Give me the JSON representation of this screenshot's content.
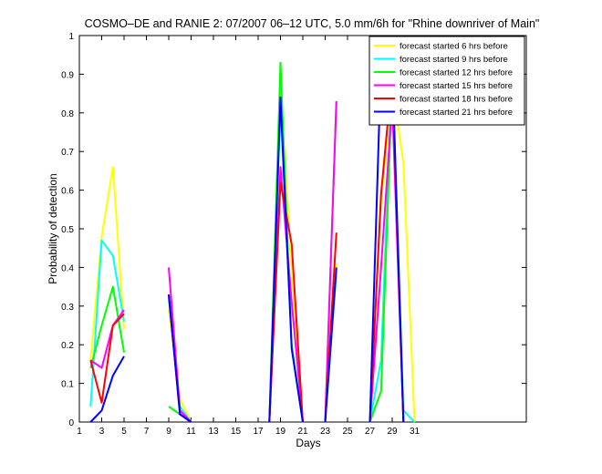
{
  "chart_data": {
    "type": "line",
    "title": "COSMO–DE and RANIE 2: 07/2007 06–12 UTC, 5.0 mm/6h for \"Rhine downriver of Main\"",
    "xlabel": "Days",
    "ylabel": "Probability of detection",
    "xlim": [
      1,
      41
    ],
    "ylim": [
      0,
      1
    ],
    "x_ticks": [
      1,
      3,
      5,
      7,
      9,
      11,
      13,
      15,
      17,
      19,
      21,
      23,
      25,
      27,
      29,
      31
    ],
    "y_ticks": [
      0,
      0.1,
      0.2,
      0.3,
      0.4,
      0.5,
      0.6,
      0.7,
      0.8,
      0.9,
      1
    ],
    "x_tick_labels": [
      "1",
      "3",
      "5",
      "7",
      "9",
      "11",
      "13",
      "15",
      "17",
      "19",
      "21",
      "23",
      "25",
      "27",
      "29",
      "31"
    ],
    "y_tick_labels": [
      "0",
      "0.1",
      "0.2",
      "0.3",
      "0.4",
      "0.5",
      "0.6",
      "0.7",
      "0.8",
      "0.9",
      "1"
    ],
    "legend_position": "top-right",
    "grid": false,
    "series": [
      {
        "name": "forecast started 6 hrs before",
        "color": "#ffff00",
        "segments": [
          [
            [
              2,
              0.16
            ],
            [
              3,
              0.48
            ],
            [
              4,
              0.66
            ],
            [
              5,
              0.24
            ]
          ],
          [
            [
              9,
              0.29
            ],
            [
              10,
              0.06
            ],
            [
              11,
              0.0
            ]
          ],
          [
            [
              18,
              0.0
            ],
            [
              19,
              0.87
            ],
            [
              20,
              0.39
            ],
            [
              21,
              0.0
            ]
          ],
          [
            [
              23,
              0.0
            ],
            [
              24,
              0.41
            ]
          ],
          [
            [
              27,
              0.0
            ],
            [
              28,
              0.57
            ],
            [
              29,
              0.87
            ],
            [
              30,
              0.67
            ],
            [
              31,
              0.0
            ]
          ]
        ]
      },
      {
        "name": "forecast started 9 hrs before",
        "color": "#00ffff",
        "segments": [
          [
            [
              2,
              0.04
            ],
            [
              3,
              0.47
            ],
            [
              4,
              0.43
            ],
            [
              5,
              0.26
            ]
          ],
          [
            [
              9,
              0.32
            ],
            [
              10,
              0.04
            ],
            [
              11,
              0.0
            ]
          ],
          [
            [
              18,
              0.0
            ],
            [
              19,
              0.82
            ],
            [
              20,
              0.2
            ],
            [
              21,
              0.0
            ]
          ],
          [
            [
              23,
              0.0
            ],
            [
              24,
              0.39
            ]
          ],
          [
            [
              27,
              0.0
            ],
            [
              28,
              0.16
            ],
            [
              29,
              0.92
            ],
            [
              30,
              0.03
            ],
            [
              31,
              0.0
            ]
          ]
        ]
      },
      {
        "name": "forecast started 12 hrs before",
        "color": "#00ff00",
        "segments": [
          [
            [
              2,
              0.14
            ],
            [
              3,
              0.25
            ],
            [
              4,
              0.35
            ],
            [
              5,
              0.18
            ]
          ],
          [
            [
              9,
              0.04
            ],
            [
              10,
              0.02
            ],
            [
              11,
              0.0
            ]
          ],
          [
            [
              18,
              0.0
            ],
            [
              19,
              0.93
            ],
            [
              20,
              0.19
            ],
            [
              21,
              0.0
            ]
          ],
          [
            [
              23,
              0.0
            ],
            [
              24,
              0.83
            ]
          ],
          [
            [
              27,
              0.0
            ],
            [
              28,
              0.08
            ],
            [
              29,
              0.88
            ],
            [
              30,
              0.0
            ]
          ]
        ]
      },
      {
        "name": "forecast started 15 hrs before",
        "color": "#ff00ff",
        "segments": [
          [
            [
              2,
              0.16
            ],
            [
              3,
              0.14
            ],
            [
              4,
              0.25
            ],
            [
              5,
              0.29
            ]
          ],
          [
            [
              9,
              0.4
            ],
            [
              10,
              0.03
            ],
            [
              11,
              0.0
            ]
          ],
          [
            [
              18,
              0.0
            ],
            [
              19,
              0.66
            ],
            [
              20,
              0.31
            ],
            [
              21,
              0.0
            ]
          ],
          [
            [
              23,
              0.0
            ],
            [
              24,
              0.83
            ]
          ],
          [
            [
              27,
              0.0
            ],
            [
              28,
              0.4
            ],
            [
              29,
              0.83
            ],
            [
              30,
              0.0
            ]
          ]
        ]
      },
      {
        "name": "forecast started 18 hrs before",
        "color": "#ff0000",
        "segments": [
          [
            [
              2,
              0.16
            ],
            [
              3,
              0.05
            ],
            [
              4,
              0.25
            ],
            [
              5,
              0.28
            ]
          ],
          [
            [
              9,
              0.33
            ],
            [
              10,
              0.02
            ],
            [
              11,
              0.0
            ]
          ],
          [
            [
              18,
              0.0
            ],
            [
              19,
              0.62
            ],
            [
              20,
              0.46
            ],
            [
              21,
              0.0
            ]
          ],
          [
            [
              23,
              0.0
            ],
            [
              24,
              0.49
            ]
          ],
          [
            [
              27,
              0.0
            ],
            [
              28,
              0.59
            ],
            [
              29,
              0.9
            ],
            [
              30,
              0.0
            ]
          ]
        ]
      },
      {
        "name": "forecast started 21 hrs before",
        "color": "#0000ff",
        "segments": [
          [
            [
              2,
              0.0
            ],
            [
              3,
              0.03
            ],
            [
              4,
              0.12
            ],
            [
              5,
              0.17
            ]
          ],
          [
            [
              9,
              0.33
            ],
            [
              10,
              0.02
            ],
            [
              11,
              0.0
            ]
          ],
          [
            [
              18,
              0.0
            ],
            [
              19,
              0.84
            ],
            [
              20,
              0.19
            ],
            [
              21,
              0.0
            ]
          ],
          [
            [
              23,
              0.0
            ],
            [
              24,
              0.4
            ]
          ],
          [
            [
              27,
              0.0
            ],
            [
              28,
              0.93
            ],
            [
              29,
              0.93
            ],
            [
              30,
              0.0
            ]
          ]
        ]
      }
    ]
  }
}
